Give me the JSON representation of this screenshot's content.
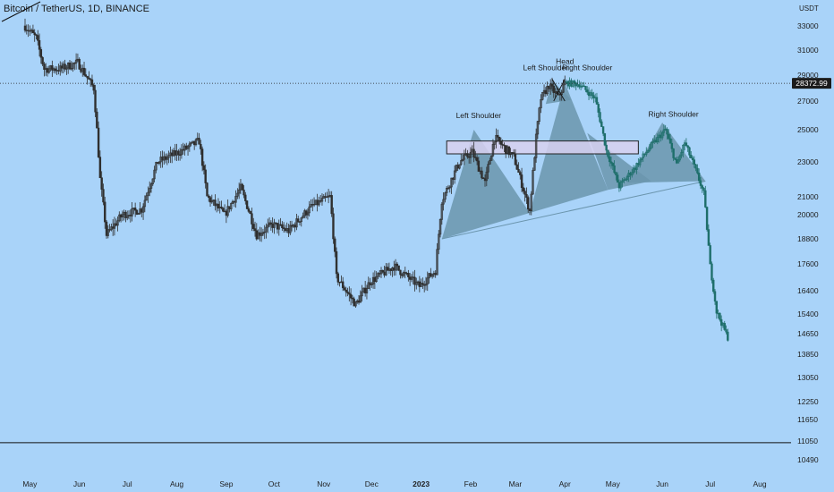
{
  "header": {
    "title": "Bitcoin / TetherUS, 1D, BINANCE",
    "unit": "USDT"
  },
  "colors": {
    "background": "#a9d3f9",
    "history_candles": "#3a3a3a",
    "projection_candles": "#1f6f6b",
    "pattern_fill": "#6b95ad",
    "price_badge": "#1b1b1b",
    "zone_fill": "#d8d0f0"
  },
  "chart_data": {
    "type": "candlestick",
    "title": "Bitcoin / TetherUS, 1D, BINANCE",
    "y_ticks": [
      33000,
      31000,
      29000,
      27000,
      25000,
      23000,
      21000,
      20000,
      18800,
      17600,
      16400,
      15400,
      14650,
      13850,
      13050,
      12250,
      11650,
      11050,
      10490
    ],
    "x_ticks": [
      "May",
      "Jun",
      "Jul",
      "Aug",
      "Sep",
      "Oct",
      "Nov",
      "Dec",
      "2023",
      "Feb",
      "Mar",
      "Apr",
      "May",
      "Jun",
      "Jul",
      "Aug"
    ],
    "current_price": {
      "value": 28372.99,
      "label": "28372.99"
    },
    "horizontal_line": 11000,
    "pattern_labels": [
      "Left Shoulder",
      "Head",
      "Right Shoulder",
      "Left Shoulder",
      "Right Shoulder"
    ],
    "approx_path": {
      "history": [
        [
          "2022-04-28",
          33000
        ],
        [
          "2022-05-05",
          32000
        ],
        [
          "2022-05-10",
          29500
        ],
        [
          "2022-05-20",
          29500
        ],
        [
          "2022-05-31",
          30000
        ],
        [
          "2022-06-10",
          28000
        ],
        [
          "2022-06-14",
          22000
        ],
        [
          "2022-06-18",
          19000
        ],
        [
          "2022-06-28",
          20000
        ],
        [
          "2022-07-10",
          20300
        ],
        [
          "2022-07-20",
          23000
        ],
        [
          "2022-07-31",
          23500
        ],
        [
          "2022-08-10",
          24000
        ],
        [
          "2022-08-15",
          24300
        ],
        [
          "2022-08-20",
          21000
        ],
        [
          "2022-08-31",
          20000
        ],
        [
          "2022-09-10",
          21500
        ],
        [
          "2022-09-20",
          19000
        ],
        [
          "2022-09-30",
          19500
        ],
        [
          "2022-10-10",
          19200
        ],
        [
          "2022-10-25",
          20500
        ],
        [
          "2022-11-05",
          21000
        ],
        [
          "2022-11-09",
          17000
        ],
        [
          "2022-11-21",
          15800
        ],
        [
          "2022-11-30",
          16800
        ],
        [
          "2022-12-15",
          17500
        ],
        [
          "2022-12-31",
          16600
        ],
        [
          "2023-01-10",
          17300
        ],
        [
          "2023-01-14",
          20800
        ],
        [
          "2023-01-25",
          23000
        ],
        [
          "2023-02-02",
          23600
        ],
        [
          "2023-02-10",
          21800
        ],
        [
          "2023-02-16",
          24500
        ],
        [
          "2023-02-28",
          23300
        ],
        [
          "2023-03-10",
          20200
        ],
        [
          "2023-03-14",
          24500
        ],
        [
          "2023-03-17",
          27200
        ],
        [
          "2023-03-22",
          28200
        ],
        [
          "2023-03-28",
          27300
        ],
        [
          "2023-04-01",
          28400
        ]
      ],
      "projection": [
        [
          "2023-04-01",
          28400
        ],
        [
          "2023-04-10",
          28300
        ],
        [
          "2023-04-20",
          27200
        ],
        [
          "2023-04-27",
          23700
        ],
        [
          "2023-05-05",
          21600
        ],
        [
          "2023-05-15",
          22700
        ],
        [
          "2023-05-25",
          24000
        ],
        [
          "2023-06-03",
          25000
        ],
        [
          "2023-06-10",
          22800
        ],
        [
          "2023-06-15",
          24200
        ],
        [
          "2023-06-22",
          22500
        ],
        [
          "2023-06-27",
          21200
        ],
        [
          "2023-07-01",
          17500
        ],
        [
          "2023-07-05",
          15500
        ],
        [
          "2023-07-12",
          14500
        ]
      ]
    },
    "resistance_zone": [
      23500,
      24300
    ],
    "grid": false,
    "legend": "none"
  }
}
